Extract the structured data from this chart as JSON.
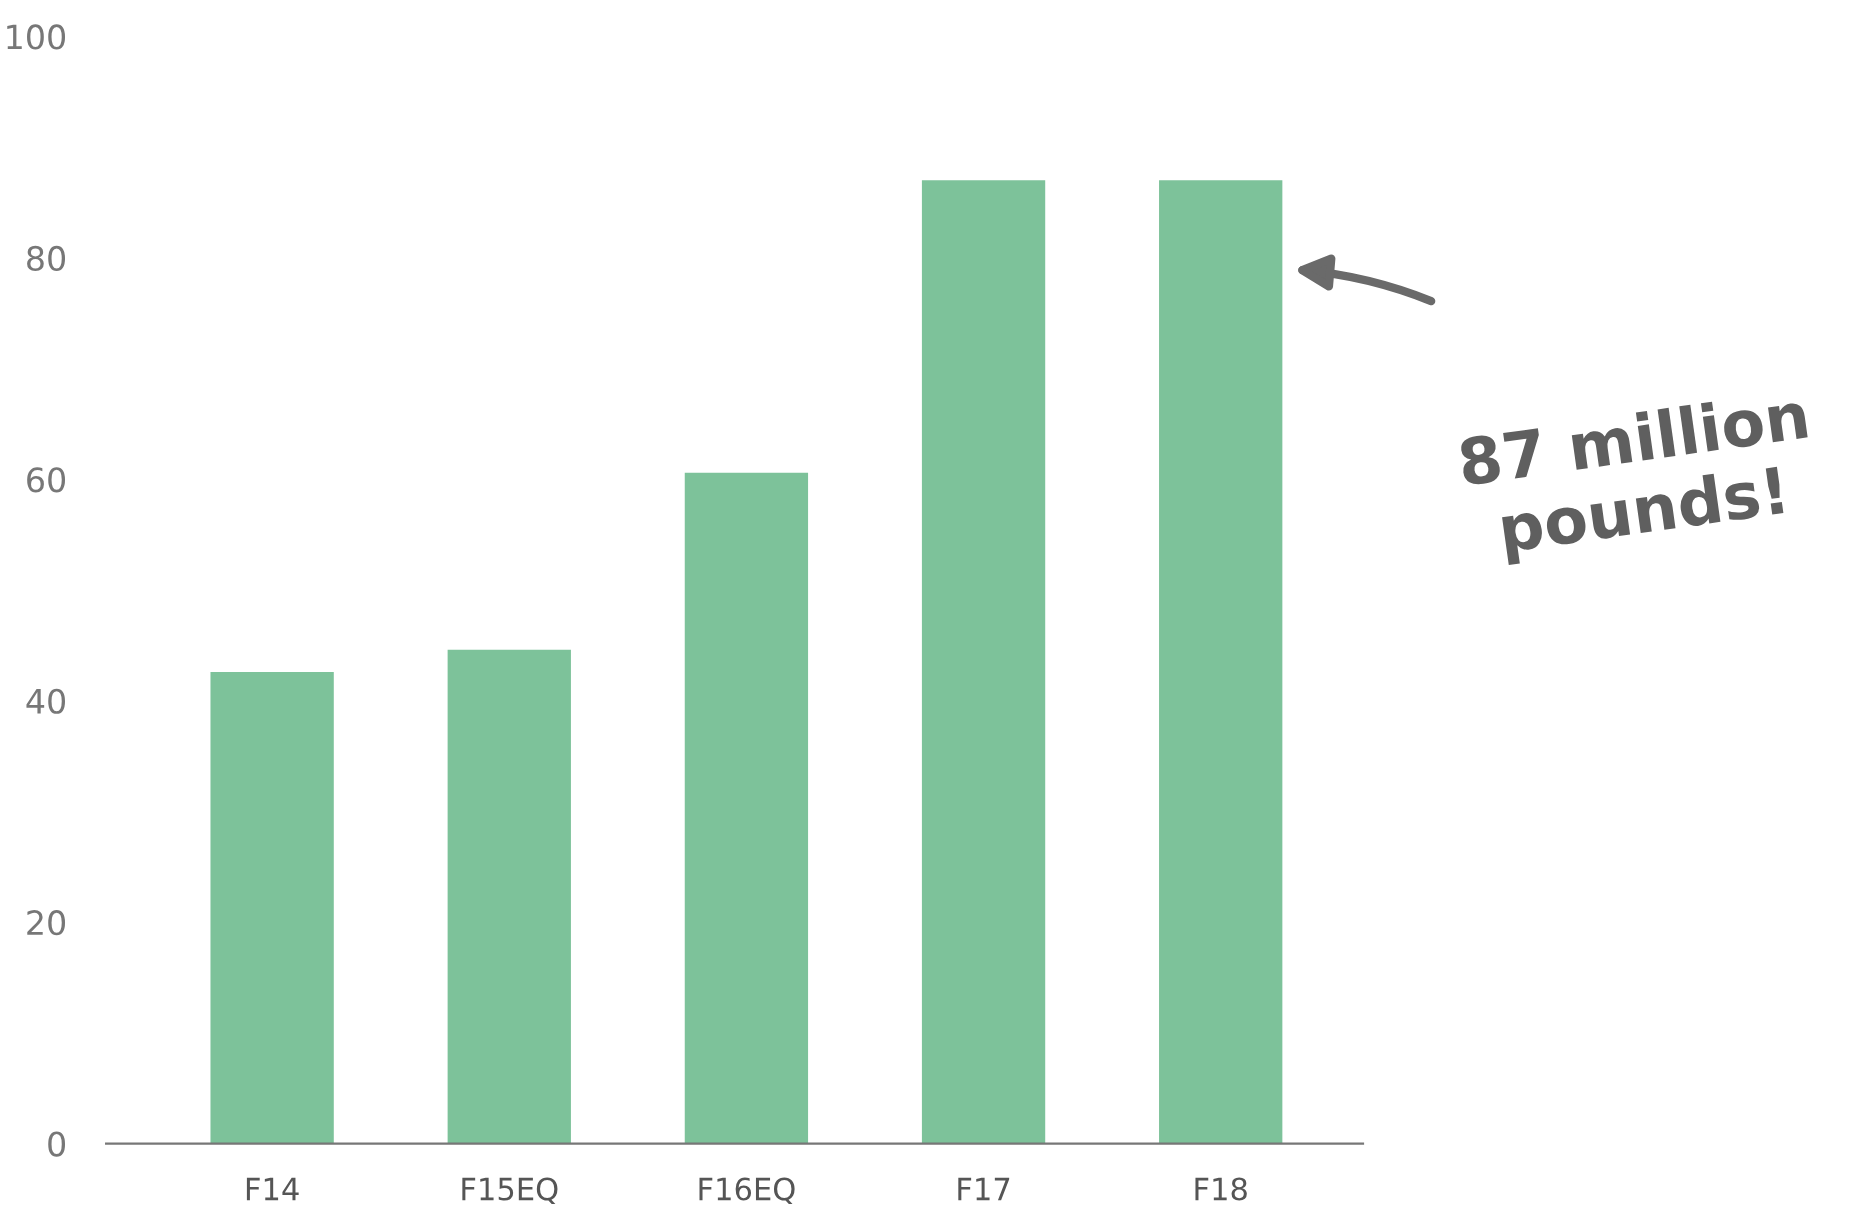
{
  "chart_data": {
    "type": "bar",
    "categories": [
      "F14",
      "F15EQ",
      "F16EQ",
      "F17",
      "F18"
    ],
    "values": [
      42.6,
      44.6,
      60.6,
      87,
      87
    ],
    "color": "#7dc29a",
    "ylim": [
      0,
      100
    ],
    "yticks": [
      0,
      20,
      40,
      60,
      80,
      100
    ],
    "grid": false,
    "annotations": [
      "87 million\npounds!"
    ]
  }
}
